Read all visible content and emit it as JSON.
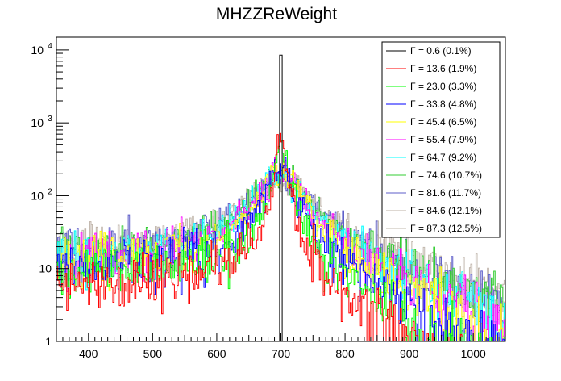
{
  "chart_data": {
    "type": "line",
    "title": "MHZZReWeight",
    "xlabel": "",
    "ylabel": "",
    "xlim": [
      350,
      1050
    ],
    "ylim": [
      1,
      15000
    ],
    "y_scale": "log",
    "x_ticks": [
      400,
      500,
      600,
      700,
      800,
      900,
      1000
    ],
    "y_ticks": [
      {
        "value": 1,
        "label": "1"
      },
      {
        "value": 10,
        "label": "10"
      },
      {
        "value": 100,
        "label": "10",
        "exp": "2"
      },
      {
        "value": 1000,
        "label": "10",
        "exp": "3"
      },
      {
        "value": 10000,
        "label": "10",
        "exp": "4"
      }
    ],
    "legend_position": "top-right",
    "peak_x": 700,
    "series": [
      {
        "name": "Γ = 0.6 (0.1%)",
        "color": "#000000",
        "width": 0.6,
        "peak": 8500
      },
      {
        "name": "Γ = 13.6 (1.9%)",
        "color": "#ff0000",
        "width": 13.6,
        "peak": 600
      },
      {
        "name": "Γ = 23.0 (3.3%)",
        "color": "#00ff00",
        "width": 23.0,
        "peak": 380
      },
      {
        "name": "Γ = 33.8 (4.8%)",
        "color": "#0000ff",
        "width": 33.8,
        "peak": 280
      },
      {
        "name": "Γ = 45.4 (6.5%)",
        "color": "#ffff00",
        "width": 45.4,
        "peak": 230
      },
      {
        "name": "Γ = 55.4 (7.9%)",
        "color": "#ff00ff",
        "width": 55.4,
        "peak": 200
      },
      {
        "name": "Γ = 64.7 (9.2%)",
        "color": "#00ffff",
        "width": 64.7,
        "peak": 180
      },
      {
        "name": "Γ = 74.6 (10.7%)",
        "color": "#33cc33",
        "width": 74.6,
        "peak": 165
      },
      {
        "name": "Γ = 81.6 (11.7%)",
        "color": "#5c5cc8",
        "width": 81.6,
        "peak": 155
      },
      {
        "name": "Γ = 84.6 (12.1%)",
        "color": "#bdb0a6",
        "width": 84.6,
        "peak": 150
      },
      {
        "name": "Γ = 87.3 (12.5%)",
        "color": "#c2b8ae",
        "width": 87.3,
        "peak": 145
      }
    ]
  }
}
